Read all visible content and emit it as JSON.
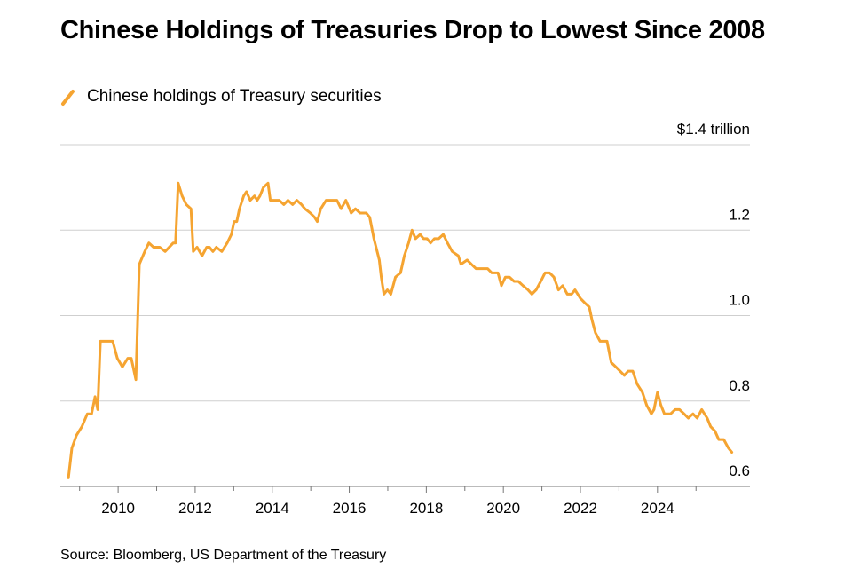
{
  "chart_data": {
    "type": "line",
    "title": "Chinese Holdings of Treasuries Drop to Lowest Since 2008",
    "source": "Source: Bloomberg, US Department of the Treasury",
    "x": [
      2008.71,
      2008.8,
      2008.92,
      2009.06,
      2009.2,
      2009.31,
      2009.4,
      2009.47,
      2009.54,
      2009.7,
      2009.86,
      2009.98,
      2010.11,
      2010.25,
      2010.34,
      2010.46,
      2010.55,
      2010.69,
      2010.8,
      2010.92,
      2011.08,
      2011.22,
      2011.43,
      2011.49,
      2011.56,
      2011.66,
      2011.77,
      2011.89,
      2011.95,
      2012.05,
      2012.18,
      2012.3,
      2012.37,
      2012.46,
      2012.55,
      2012.69,
      2012.83,
      2012.94,
      2013.01,
      2013.08,
      2013.15,
      2013.26,
      2013.33,
      2013.43,
      2013.54,
      2013.61,
      2013.68,
      2013.77,
      2013.89,
      2013.95,
      2014.07,
      2014.18,
      2014.3,
      2014.41,
      2014.53,
      2014.64,
      2014.76,
      2014.85,
      2014.99,
      2015.1,
      2015.17,
      2015.26,
      2015.4,
      2015.56,
      2015.68,
      2015.79,
      2015.91,
      2016.05,
      2016.16,
      2016.28,
      2016.44,
      2016.53,
      2016.64,
      2016.78,
      2016.83,
      2016.9,
      2016.99,
      2017.08,
      2017.2,
      2017.33,
      2017.43,
      2017.54,
      2017.63,
      2017.72,
      2017.84,
      2017.93,
      2018.02,
      2018.11,
      2018.21,
      2018.32,
      2018.44,
      2018.55,
      2018.67,
      2018.83,
      2018.9,
      2019.06,
      2019.17,
      2019.29,
      2019.4,
      2019.59,
      2019.7,
      2019.86,
      2019.95,
      2020.05,
      2020.16,
      2020.28,
      2020.39,
      2020.51,
      2020.64,
      2020.74,
      2020.85,
      2020.97,
      2021.08,
      2021.2,
      2021.31,
      2021.43,
      2021.54,
      2021.66,
      2021.77,
      2021.86,
      2022.0,
      2022.11,
      2022.23,
      2022.3,
      2022.39,
      2022.51,
      2022.69,
      2022.8,
      2022.92,
      2023.03,
      2023.14,
      2023.24,
      2023.36,
      2023.47,
      2023.61,
      2023.72,
      2023.84,
      2023.91,
      2024.0,
      2024.09,
      2024.18,
      2024.34,
      2024.46,
      2024.57,
      2024.69,
      2024.8,
      2024.92,
      2025.03,
      2025.15,
      2025.29,
      2025.38,
      2025.49,
      2025.59,
      2025.72,
      2025.84,
      2025.93
    ],
    "series": [
      {
        "name": "Chinese holdings of Treasury securities",
        "color": "#f5a431",
        "values": [
          0.62,
          0.69,
          0.72,
          0.74,
          0.77,
          0.77,
          0.81,
          0.78,
          0.94,
          0.94,
          0.94,
          0.9,
          0.88,
          0.9,
          0.9,
          0.85,
          1.12,
          1.15,
          1.17,
          1.16,
          1.16,
          1.15,
          1.17,
          1.17,
          1.31,
          1.28,
          1.26,
          1.25,
          1.15,
          1.16,
          1.14,
          1.16,
          1.16,
          1.15,
          1.16,
          1.15,
          1.17,
          1.19,
          1.22,
          1.22,
          1.25,
          1.28,
          1.29,
          1.27,
          1.28,
          1.27,
          1.28,
          1.3,
          1.31,
          1.27,
          1.27,
          1.27,
          1.26,
          1.27,
          1.26,
          1.27,
          1.26,
          1.25,
          1.24,
          1.23,
          1.22,
          1.25,
          1.27,
          1.27,
          1.27,
          1.25,
          1.27,
          1.24,
          1.25,
          1.24,
          1.24,
          1.23,
          1.18,
          1.13,
          1.09,
          1.05,
          1.06,
          1.05,
          1.09,
          1.1,
          1.14,
          1.17,
          1.2,
          1.18,
          1.19,
          1.18,
          1.18,
          1.17,
          1.18,
          1.18,
          1.19,
          1.17,
          1.15,
          1.14,
          1.12,
          1.13,
          1.12,
          1.11,
          1.11,
          1.11,
          1.1,
          1.1,
          1.07,
          1.09,
          1.09,
          1.08,
          1.08,
          1.07,
          1.06,
          1.05,
          1.06,
          1.08,
          1.1,
          1.1,
          1.09,
          1.06,
          1.07,
          1.05,
          1.05,
          1.06,
          1.04,
          1.03,
          1.02,
          0.99,
          0.96,
          0.94,
          0.94,
          0.89,
          0.88,
          0.87,
          0.86,
          0.87,
          0.87,
          0.84,
          0.82,
          0.79,
          0.77,
          0.78,
          0.82,
          0.79,
          0.77,
          0.77,
          0.78,
          0.78,
          0.77,
          0.76,
          0.77,
          0.76,
          0.78,
          0.76,
          0.74,
          0.73,
          0.71,
          0.71,
          0.69,
          0.68
        ]
      }
    ],
    "xlim": [
      2008.5,
      2026.4
    ],
    "xticks": [
      2010,
      2012,
      2014,
      2016,
      2018,
      2020,
      2022,
      2024
    ],
    "ylim": [
      0.6,
      1.4
    ],
    "yticks": [
      0.6,
      0.8,
      {
        "value": 1,
        "label": "1.0"
      },
      1.2,
      {
        "value": 1.4,
        "label": "$1.4 trillion"
      }
    ],
    "grid": true
  }
}
